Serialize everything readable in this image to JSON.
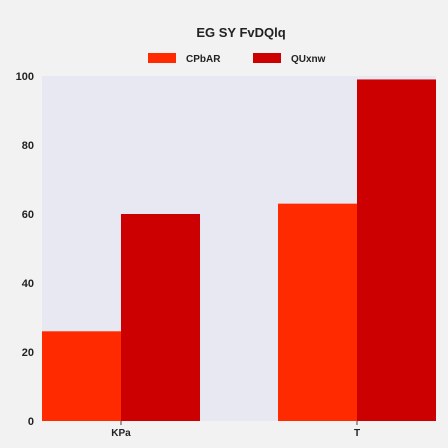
{
  "chart_data": {
    "type": "bar",
    "title": "EG SY  FvDQlq",
    "categories": [
      "KPa",
      "T"
    ],
    "series": [
      {
        "name": "CPbAR",
        "values": [
          26,
          63
        ],
        "color": "#ff2a00"
      },
      {
        "name": "QUxnw",
        "values": [
          60,
          99
        ],
        "color": "#cc0000"
      }
    ],
    "xlabel": "",
    "ylabel": "",
    "ylim": [
      0,
      100
    ],
    "yticks": [
      0,
      20,
      40,
      60,
      80,
      100
    ],
    "legend_position": "top-center",
    "grid": false,
    "plot_background": "#e8e8f3"
  }
}
